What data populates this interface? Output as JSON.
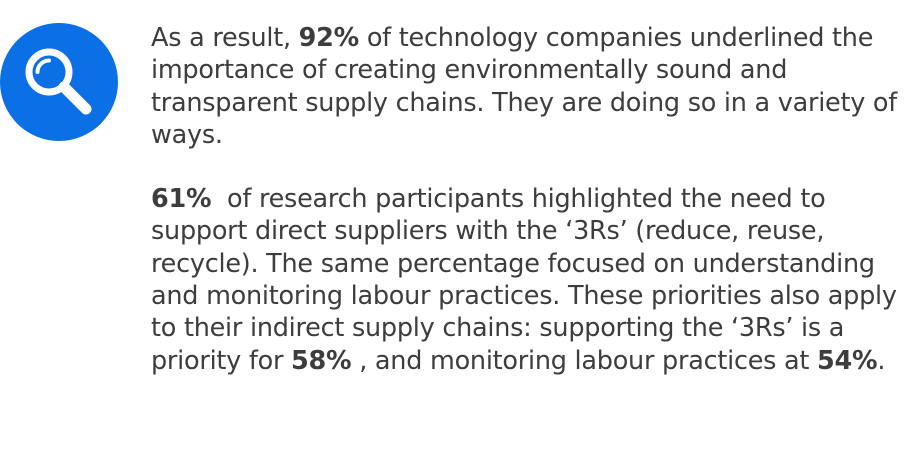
{
  "icon": {
    "name": "magnifying-glass-icon",
    "bg_color": "#0b6fe6",
    "fg_color": "#ffffff"
  },
  "paragraph1": {
    "before": "As a result, ",
    "stat": "92%",
    "after": " of technology companies underlined the importance of creating environmentally sound and transparent supply chains. They are doing so in a variety of ways."
  },
  "paragraph2": {
    "stat1": "61%",
    "text1": "  of research participants highlighted the need to support direct suppliers with the ‘3Rs’ (reduce, reuse, recycle). The same percentage focused on understanding and monitoring labour practices. These priorities also apply to their indirect supply chains: supporting the ‘3Rs’ is a priority for ",
    "stat2": "58%",
    "text2": " , and monitoring labour practices at ",
    "stat3": "54%",
    "text3": "."
  }
}
